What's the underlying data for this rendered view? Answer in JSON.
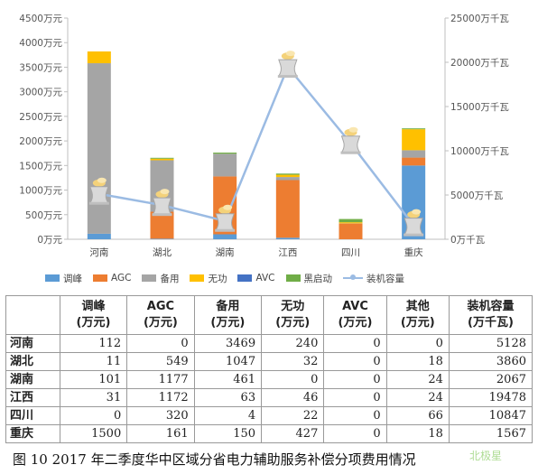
{
  "chart_data": {
    "type": "bar",
    "stacked": true,
    "categories": [
      "河南",
      "湖北",
      "湖南",
      "江西",
      "四川",
      "重庆"
    ],
    "series": [
      {
        "name": "调峰",
        "color": "#5b9bd5",
        "values": [
          112,
          11,
          101,
          31,
          0,
          1500
        ]
      },
      {
        "name": "AGC",
        "color": "#ed7d31",
        "values": [
          0,
          549,
          1177,
          1172,
          320,
          161
        ]
      },
      {
        "name": "备用",
        "color": "#a5a5a5",
        "values": [
          3469,
          1047,
          461,
          63,
          4,
          150
        ]
      },
      {
        "name": "无功",
        "color": "#ffc000",
        "values": [
          240,
          32,
          0,
          46,
          22,
          427
        ]
      },
      {
        "name": "AVC",
        "color": "#4472c4",
        "values": [
          0,
          0,
          0,
          0,
          0,
          0
        ]
      },
      {
        "name": "黑启动",
        "color": "#70ad47",
        "values": [
          0,
          18,
          24,
          24,
          66,
          18
        ]
      }
    ],
    "line_series": {
      "name": "装机容量",
      "color": "#9bbbe3",
      "axis": "right",
      "values": [
        5128,
        3860,
        2067,
        19478,
        10847,
        1567
      ]
    },
    "left_axis": {
      "ylim": [
        0,
        4500
      ],
      "ticks": [
        0,
        500,
        1000,
        1500,
        2000,
        2500,
        3000,
        3500,
        4000,
        4500
      ],
      "tick_labels": [
        "0万元",
        "500万元",
        "1000万元",
        "1500万元",
        "2000万元",
        "2500万元",
        "3000万元",
        "3500万元",
        "4000万元",
        "4500万元"
      ]
    },
    "right_axis": {
      "ylim": [
        0,
        25000
      ],
      "ticks": [
        0,
        5000,
        10000,
        15000,
        20000,
        25000
      ],
      "tick_labels": [
        "0万千瓦",
        "5000万千瓦",
        "10000万千瓦",
        "15000万千瓦",
        "20000万千瓦",
        "25000万千瓦"
      ]
    },
    "legend_position": "bottom",
    "grid": false
  },
  "legend": {
    "items": [
      {
        "label": "调峰",
        "color": "#5b9bd5",
        "kind": "bar"
      },
      {
        "label": "AGC",
        "color": "#ed7d31",
        "kind": "bar"
      },
      {
        "label": "备用",
        "color": "#a5a5a5",
        "kind": "bar"
      },
      {
        "label": "无功",
        "color": "#ffc000",
        "kind": "bar"
      },
      {
        "label": "AVC",
        "color": "#4472c4",
        "kind": "bar"
      },
      {
        "label": "黑启动",
        "color": "#70ad47",
        "kind": "bar"
      },
      {
        "label": "装机容量",
        "color": "#9bbbe3",
        "kind": "line"
      }
    ]
  },
  "table": {
    "headers": [
      {
        "name": "调峰",
        "unit": "(万元)"
      },
      {
        "name": "AGC",
        "unit": "(万元)"
      },
      {
        "name": "备用",
        "unit": "(万元)"
      },
      {
        "name": "无功",
        "unit": "(万元)"
      },
      {
        "name": "AVC",
        "unit": "(万元)"
      },
      {
        "name": "其他",
        "unit": "(万元)"
      },
      {
        "name": "装机容量",
        "unit": "(万千瓦)"
      }
    ],
    "rows": [
      {
        "province": "河南",
        "values": [
          "112",
          "0",
          "3469",
          "240",
          "0",
          "0",
          "5128"
        ]
      },
      {
        "province": "湖北",
        "values": [
          "11",
          "549",
          "1047",
          "32",
          "0",
          "18",
          "3860"
        ]
      },
      {
        "province": "湖南",
        "values": [
          "101",
          "1177",
          "461",
          "0",
          "0",
          "24",
          "2067"
        ]
      },
      {
        "province": "江西",
        "values": [
          "31",
          "1172",
          "63",
          "46",
          "0",
          "24",
          "19478"
        ]
      },
      {
        "province": "四川",
        "values": [
          "0",
          "320",
          "4",
          "22",
          "0",
          "66",
          "10847"
        ]
      },
      {
        "province": "重庆",
        "values": [
          "1500",
          "161",
          "150",
          "427",
          "0",
          "18",
          "1567"
        ]
      }
    ]
  },
  "caption": "图 10   2017 年二季度华中区域分省电力辅助服务补偿分项费用情况",
  "watermark": "北极星"
}
